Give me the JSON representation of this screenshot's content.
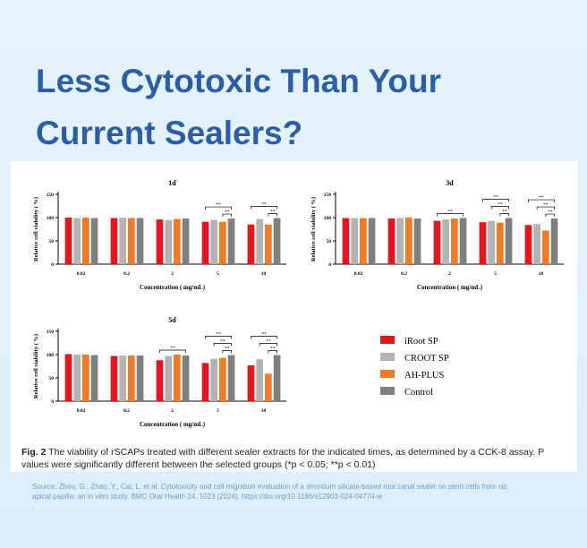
{
  "header": {
    "title": "Less Cytotoxic Than Your Current Sealers?"
  },
  "legend": [
    {
      "name": "iRoot SP",
      "color": "#e8141c"
    },
    {
      "name": "CROOT SP",
      "color": "#b3b3b3"
    },
    {
      "name": "AH-PLUS",
      "color": "#f47920"
    },
    {
      "name": "Control",
      "color": "#7f7f7f"
    }
  ],
  "chart_data": [
    {
      "type": "bar",
      "title": "1d",
      "xlabel": "Concentration ( mg/mL)",
      "ylabel": "Relative cell viability ( %)",
      "categories": [
        "0.02",
        "0.2",
        "2",
        "5",
        "10"
      ],
      "ylim": [
        0,
        150
      ],
      "yticks": [
        0,
        50,
        100,
        150
      ],
      "series": [
        {
          "values": [
            100,
            99,
            96,
            91,
            85
          ]
        },
        {
          "values": [
            99,
            100,
            95,
            95,
            97
          ]
        },
        {
          "values": [
            100,
            99,
            97,
            91,
            85
          ]
        },
        {
          "values": [
            99,
            99,
            98,
            98,
            99
          ]
        }
      ],
      "brackets": [
        {
          "category": 3,
          "from": 0,
          "to": 3,
          "label": "**"
        },
        {
          "category": 3,
          "from": 2,
          "to": 3,
          "label": "**"
        },
        {
          "category": 4,
          "from": 0,
          "to": 3,
          "label": "**"
        },
        {
          "category": 4,
          "from": 2,
          "to": 3,
          "label": "**"
        }
      ]
    },
    {
      "type": "bar",
      "title": "3d",
      "xlabel": "Concentration ( mg/mL)",
      "ylabel": "Relative cell viability ( %)",
      "categories": [
        "0.02",
        "0.2",
        "2",
        "5",
        "10"
      ],
      "ylim": [
        0,
        150
      ],
      "yticks": [
        0,
        50,
        100,
        150
      ],
      "series": [
        {
          "values": [
            99,
            98,
            93,
            90,
            84
          ]
        },
        {
          "values": [
            99,
            99,
            96,
            93,
            86
          ]
        },
        {
          "values": [
            99,
            100,
            98,
            89,
            72
          ]
        },
        {
          "values": [
            99,
            98,
            99,
            99,
            98
          ]
        }
      ],
      "brackets": [
        {
          "category": 2,
          "from": 0,
          "to": 3,
          "label": "**"
        },
        {
          "category": 3,
          "from": 0,
          "to": 3,
          "label": "**"
        },
        {
          "category": 3,
          "from": 1,
          "to": 3,
          "label": "**"
        },
        {
          "category": 3,
          "from": 2,
          "to": 3,
          "label": "**"
        },
        {
          "category": 4,
          "from": 0,
          "to": 3,
          "label": "**"
        },
        {
          "category": 4,
          "from": 1,
          "to": 3,
          "label": "**"
        },
        {
          "category": 4,
          "from": 2,
          "to": 3,
          "label": "**"
        }
      ]
    },
    {
      "type": "bar",
      "title": "5d",
      "xlabel": "Concentration ( mg/mL)",
      "ylabel": "Relative cell viability ( %)",
      "categories": [
        "0.02",
        "0.2",
        "2",
        "5",
        "10"
      ],
      "ylim": [
        0,
        150
      ],
      "yticks": [
        0,
        50,
        100,
        150
      ],
      "series": [
        {
          "values": [
            101,
            97,
            88,
            82,
            77
          ]
        },
        {
          "values": [
            100,
            98,
            97,
            91,
            90
          ]
        },
        {
          "values": [
            100,
            98,
            100,
            93,
            59
          ]
        },
        {
          "values": [
            99,
            98,
            98,
            99,
            99
          ]
        }
      ],
      "brackets": [
        {
          "category": 2,
          "from": 0,
          "to": 3,
          "label": "**"
        },
        {
          "category": 3,
          "from": 0,
          "to": 3,
          "label": "**"
        },
        {
          "category": 3,
          "from": 1,
          "to": 3,
          "label": "**"
        },
        {
          "category": 3,
          "from": 2,
          "to": 3,
          "label": "**"
        },
        {
          "category": 4,
          "from": 0,
          "to": 3,
          "label": "**"
        },
        {
          "category": 4,
          "from": 1,
          "to": 3,
          "label": "**"
        },
        {
          "category": 4,
          "from": 2,
          "to": 3,
          "label": "**"
        }
      ]
    }
  ],
  "caption": {
    "label": "Fig. 2",
    "text": "The viability of rSCAPs treated with different sealer extracts for the indicated times, as determined by a CCK-8 assay. P values were significantly different between the selected groups (*p < 0.05; **p < 0.01)"
  },
  "source": {
    "text": "Source: Zhou, G., Zhao, Y., Cai, L. et al. Cytotoxicity and cell migration evaluation of a strontium silicate-based root canal sealer on stem cells from rat apical papilla: an in vitro study. BMC Oral Health 24, 1023 (2024). https://doi.org/10.1186/s12903-024-04774-w",
    "end": "."
  }
}
